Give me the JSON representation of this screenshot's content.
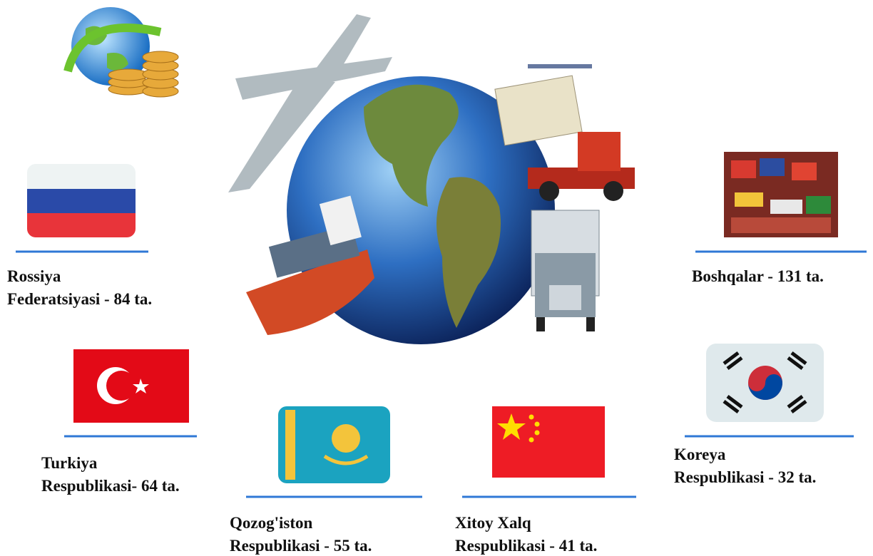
{
  "items": [
    {
      "lines": [
        "Rossiya",
        "Federatsiyasi - 84 ta."
      ]
    },
    {
      "lines": [
        "Boshqalar - 131 ta."
      ]
    },
    {
      "lines": [
        "Turkiya",
        "Respublikasi- 64 ta."
      ]
    },
    {
      "lines": [
        "Koreya",
        "Respublikasi - 32 ta."
      ]
    },
    {
      "lines": [
        "Qozog'iston",
        "Respublikasi - 55 ta."
      ]
    },
    {
      "lines": [
        "Xitoy Xalq",
        "Respublikasi - 41 ta."
      ]
    }
  ]
}
